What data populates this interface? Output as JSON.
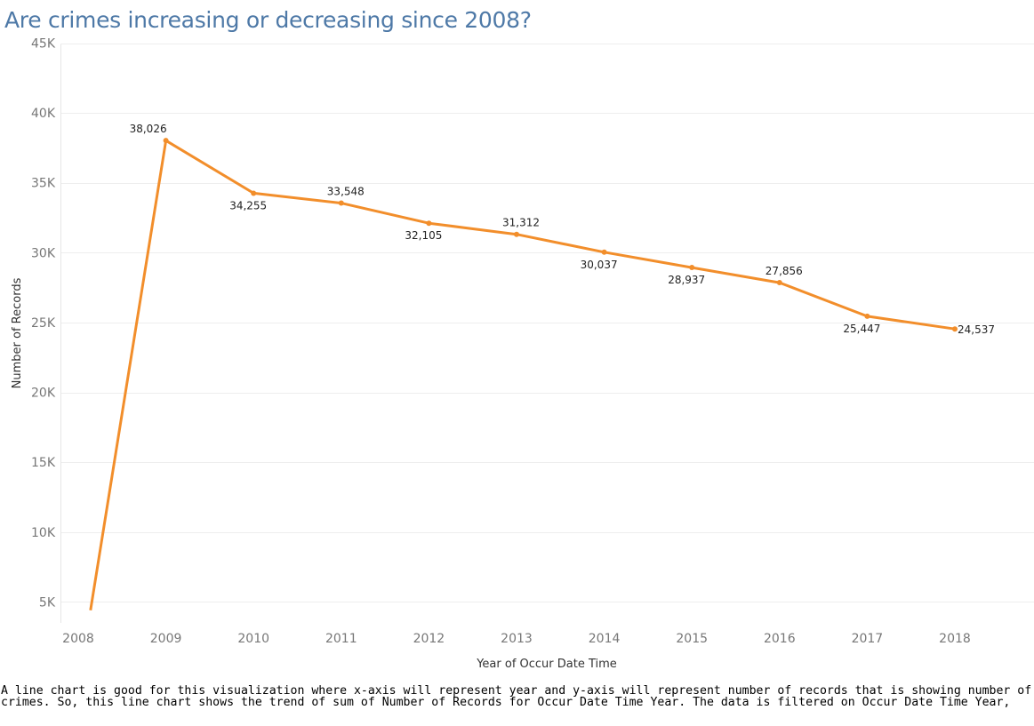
{
  "page": {
    "title": "Are crimes increasing or decreasing since 2008?",
    "caption": "A line chart is good for this visualization where x-axis will represent year and y-axis will represent number of records that is showing number of crimes. So, this line chart shows the trend of sum of Number of Records for Occur Date Time Year. The data is filtered on Occur Date Time Year,"
  },
  "chart_data": {
    "type": "line",
    "title": "Are crimes increasing or decreasing since 2008?",
    "xlabel": "Year of Occur Date Time",
    "ylabel": "Number of Records",
    "x": [
      2008,
      2009,
      2010,
      2011,
      2012,
      2013,
      2014,
      2015,
      2016,
      2017,
      2018
    ],
    "series": [
      {
        "values": [
          null,
          38026,
          34255,
          33548,
          32105,
          31312,
          30037,
          28937,
          27856,
          25447,
          24537
        ],
        "labels": [
          "",
          "38,026",
          "34,255",
          "33,548",
          "32,105",
          "31,312",
          "30,037",
          "28,937",
          "27,856",
          "25,447",
          "24,537"
        ],
        "label_position": [
          null,
          "above",
          "below",
          "above",
          "below",
          "above",
          "below",
          "below",
          "above",
          "below",
          "right"
        ],
        "color": "#f28e2b"
      }
    ],
    "partial_start": {
      "x": 2008.14,
      "y": 4400
    },
    "ylim": [
      3500,
      45000
    ],
    "yticks": [
      5000,
      10000,
      15000,
      20000,
      25000,
      30000,
      35000,
      40000,
      45000
    ],
    "ytick_labels": [
      "5K",
      "10K",
      "15K",
      "20K",
      "25K",
      "30K",
      "35K",
      "40K",
      "45K"
    ],
    "xticks": [
      2008,
      2009,
      2010,
      2011,
      2012,
      2013,
      2014,
      2015,
      2016,
      2017,
      2018
    ],
    "xtick_labels": [
      "2008",
      "2009",
      "2010",
      "2011",
      "2012",
      "2013",
      "2014",
      "2015",
      "2016",
      "2017",
      "2018"
    ],
    "grid": "horizontal",
    "legend": "none"
  }
}
